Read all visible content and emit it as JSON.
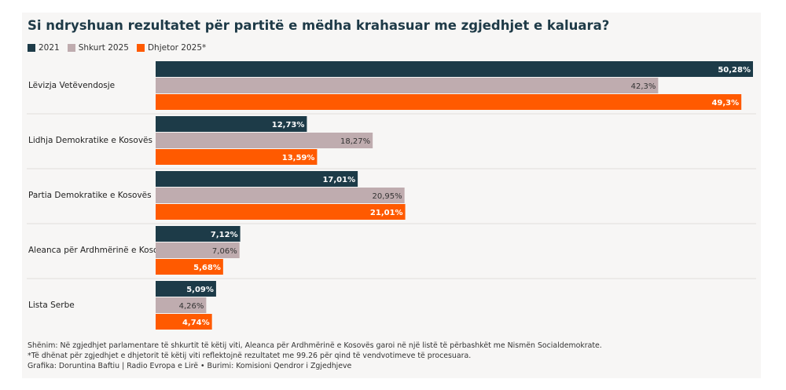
{
  "chart_data": {
    "type": "bar",
    "orientation": "horizontal",
    "title": "Si ndryshuan rezultatet për partitë e mëdha krahasuar me zgjedhjet e kaluara?",
    "categories": [
      "Lëvizja Vetëvendosje",
      "Lidhja Demokratike e Kosovës",
      "Partia Demokratike e Kosovës",
      "Aleanca për Ardhmërinë e Kosovës",
      "Lista Serbe"
    ],
    "series": [
      {
        "name": "2021",
        "color": "#1d3b48",
        "label_color": "#ffffff",
        "values": [
          50.28,
          12.73,
          17.01,
          7.12,
          5.09
        ],
        "labels": [
          "50,28%",
          "12,73%",
          "17,01%",
          "7,12%",
          "5,09%"
        ]
      },
      {
        "name": "Shkurt 2025",
        "color": "#bfacaf",
        "label_color": "#333333",
        "values": [
          42.3,
          18.27,
          20.95,
          7.06,
          4.26
        ],
        "labels": [
          "42,3%",
          "18,27%",
          "20,95%",
          "7,06%",
          "4,26%"
        ]
      },
      {
        "name": "Dhjetor 2025*",
        "color": "#ff5a00",
        "label_color": "#ffffff",
        "values": [
          49.3,
          13.59,
          21.01,
          5.68,
          4.74
        ],
        "labels": [
          "49,3%",
          "13,59%",
          "21,01%",
          "5,68%",
          "4,74%"
        ]
      }
    ],
    "xlim": [
      0,
      50.28
    ],
    "legend_position": "top-left",
    "grid": false
  },
  "notes": [
    "Shënim: Në zgjedhjet parlamentare të shkurtit të këtij viti, Aleanca për Ardhmërinë e Kosovës garoi në një listë të përbashkët me Nismën Socialdemokrate.",
    "*Të dhënat për zgjedhjet e dhjetorit të këtij viti reflektojnë rezultatet me 99.26 për qind të vendvotimeve të procesuara.",
    "Grafika: Doruntina Baftiu | Radio Evropa e Lirë • Burimi: Komisioni Qendror i Zgjedhjeve"
  ]
}
